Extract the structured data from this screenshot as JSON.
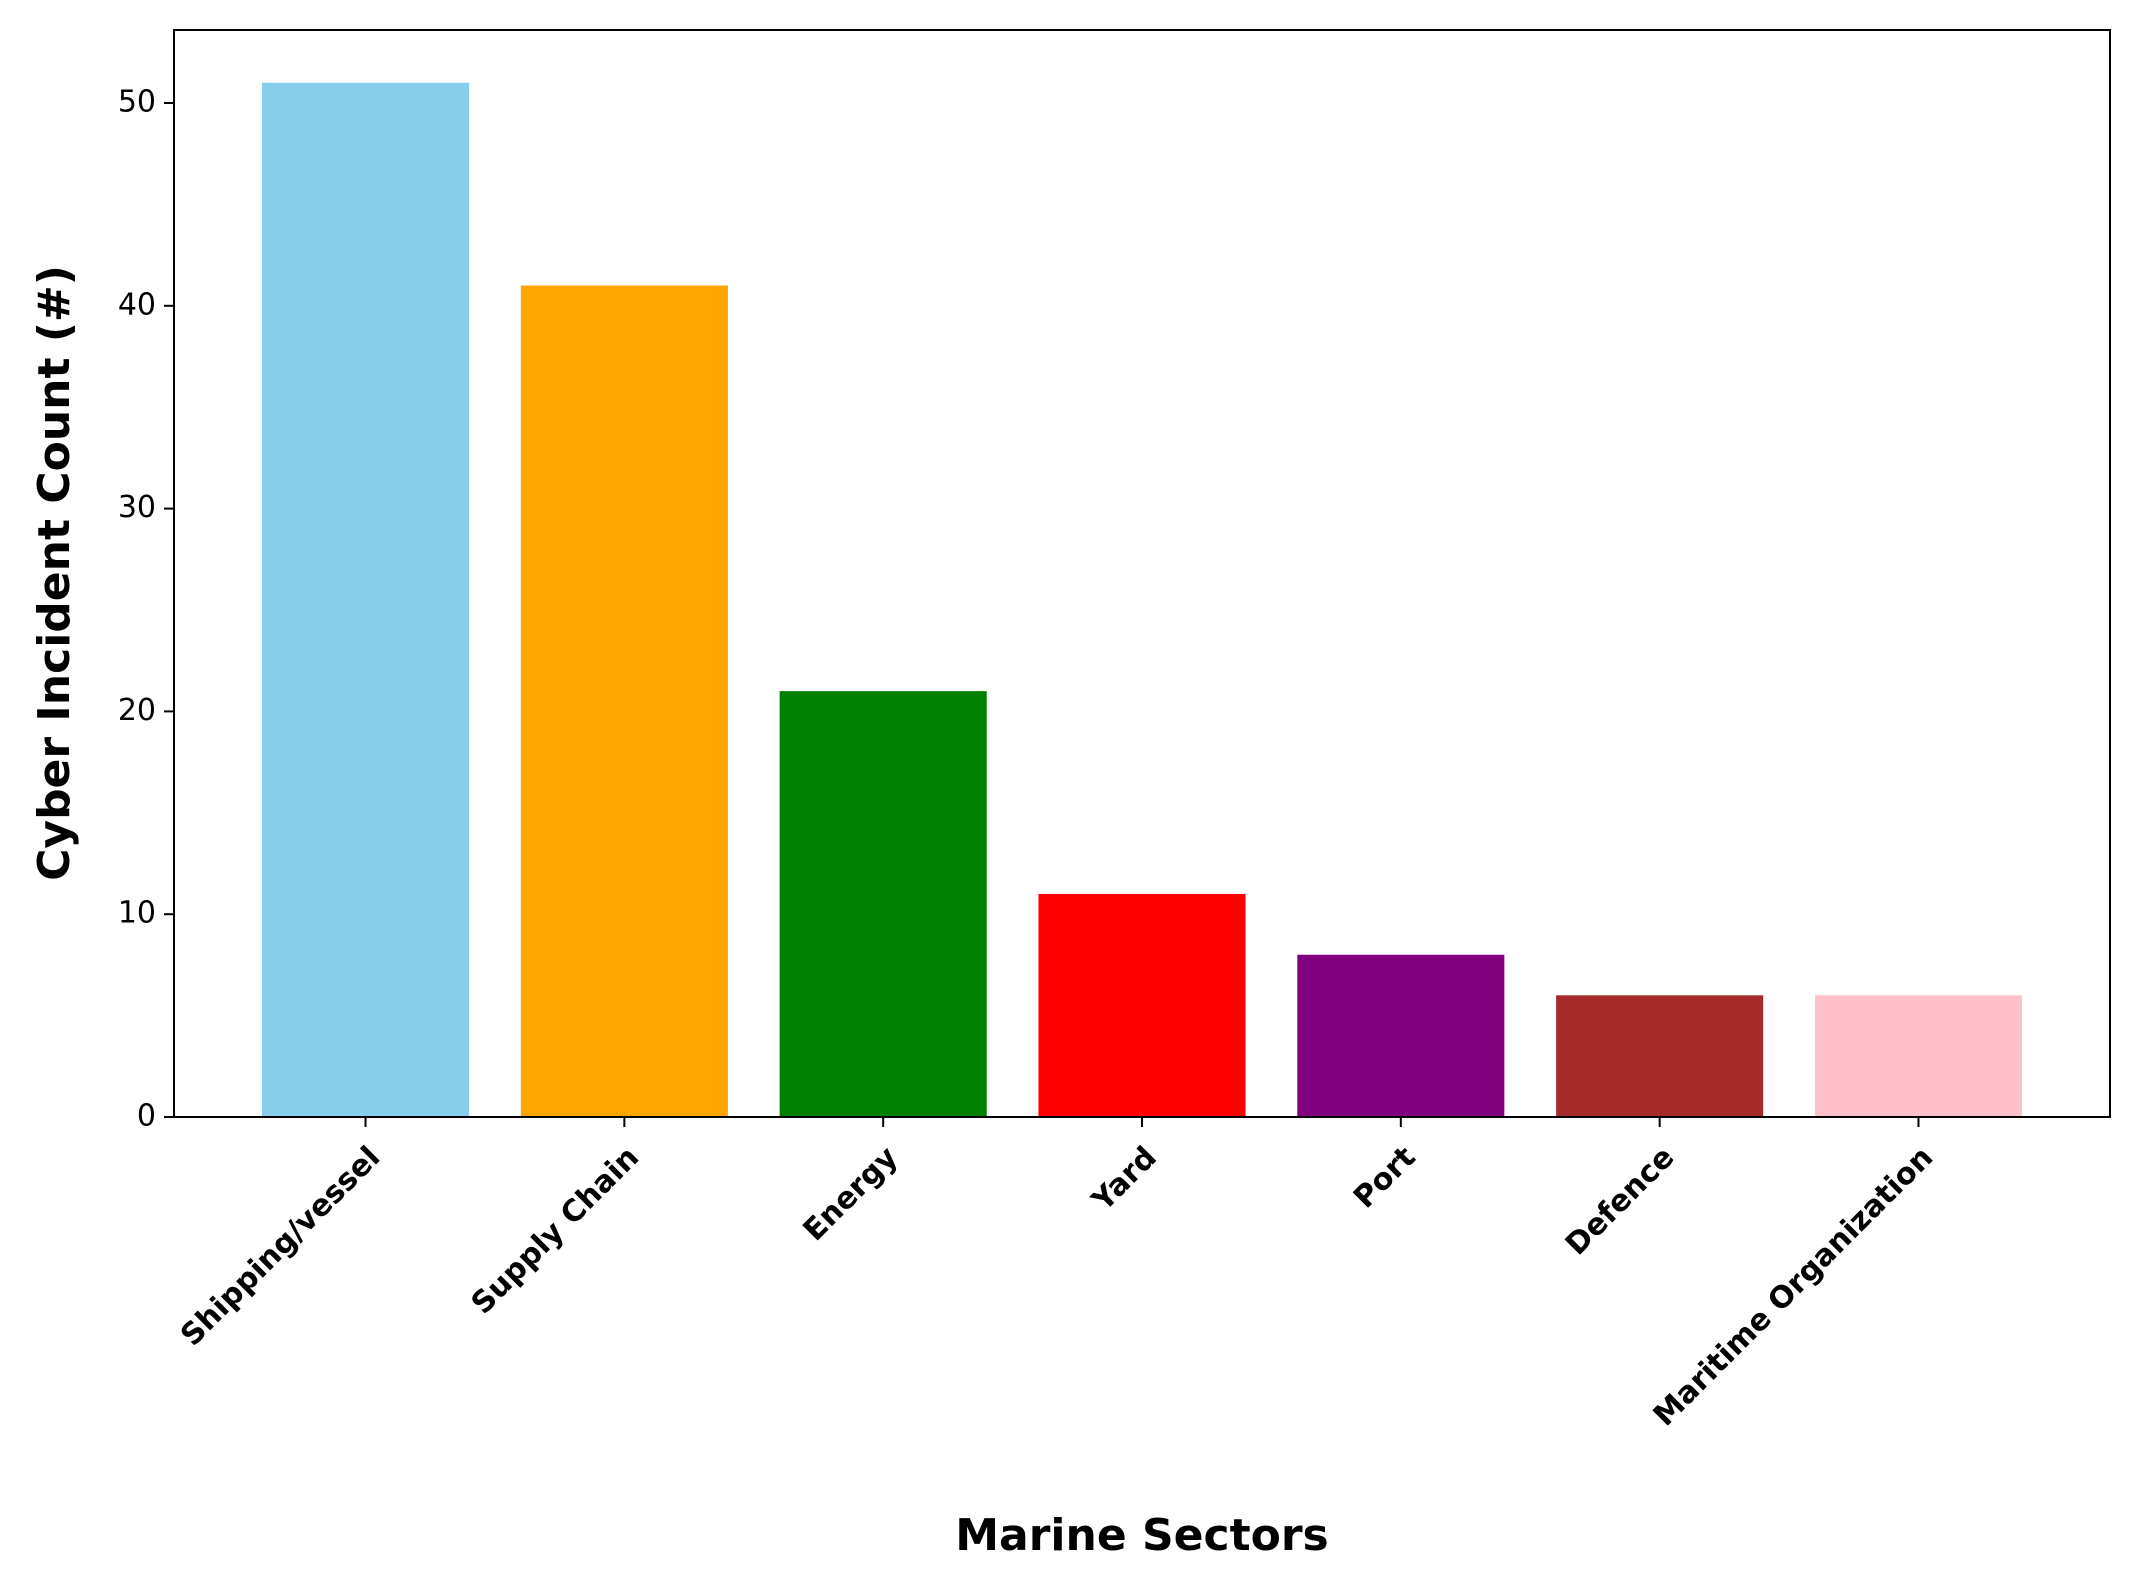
{
  "chart_data": {
    "type": "bar",
    "x_label": "Marine Sectors",
    "y_label": "Cyber Incident Count (#)",
    "categories": [
      "Shipping/vessel",
      "Supply Chain",
      "Energy",
      "Yard",
      "Port",
      "Defence",
      "Maritime Organization"
    ],
    "values": [
      51,
      41,
      21,
      11,
      8,
      6,
      6
    ],
    "colors": [
      "#87ceeb",
      "#ffa500",
      "#008000",
      "#ff0000",
      "#800080",
      "#a52a2a",
      "#ffc0cb"
    ],
    "ylim": [
      0,
      53.6
    ],
    "yticks": [
      0,
      10,
      20,
      30,
      40,
      50
    ],
    "grid": false
  }
}
